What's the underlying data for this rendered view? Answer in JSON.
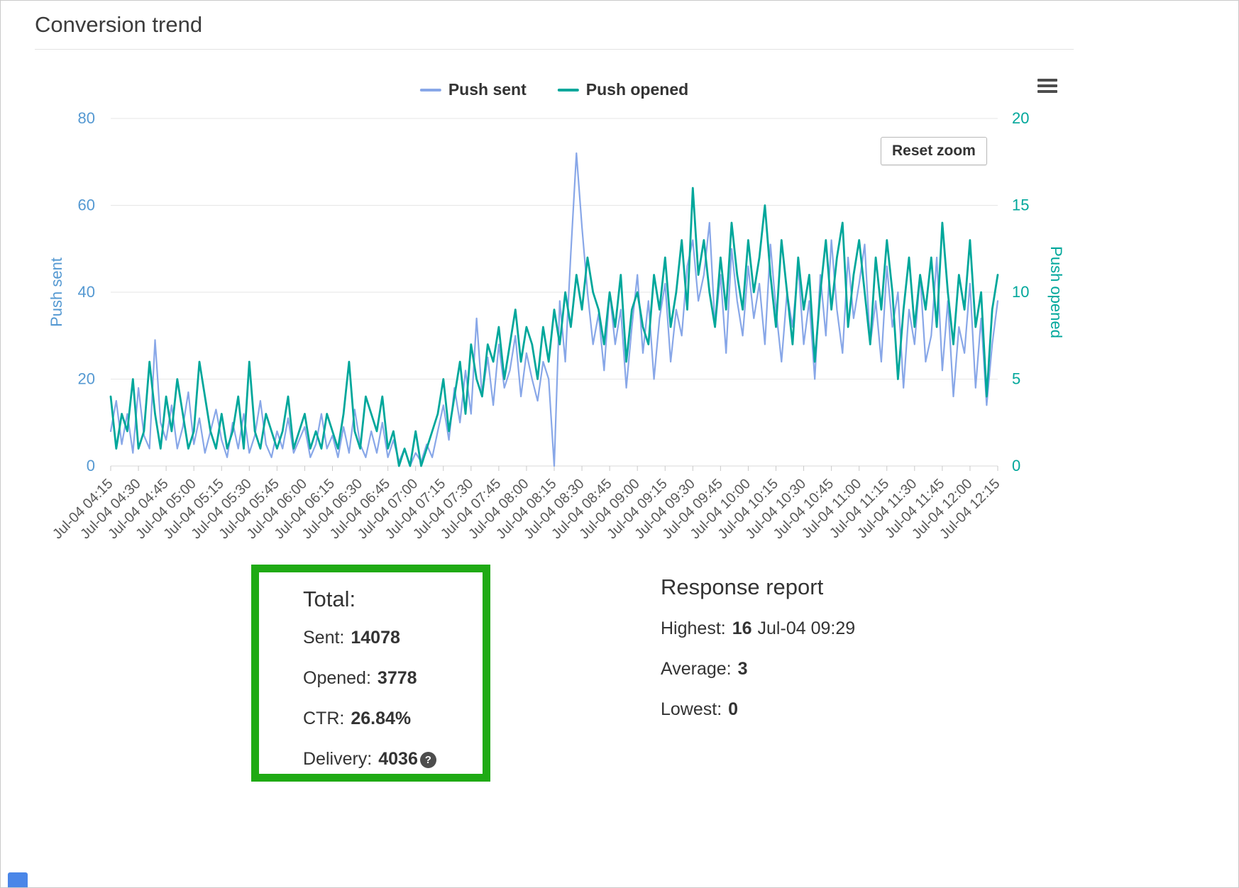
{
  "page": {
    "title": "Conversion trend"
  },
  "chart": {
    "reset_zoom_label": "Reset zoom"
  },
  "chart_data": {
    "type": "line",
    "title": "Conversion trend",
    "grid": true,
    "legend_position": "top",
    "x_tick_labels": [
      "Jul-04 04:15",
      "Jul-04 04:30",
      "Jul-04 04:45",
      "Jul-04 05:00",
      "Jul-04 05:15",
      "Jul-04 05:30",
      "Jul-04 05:45",
      "Jul-04 06:00",
      "Jul-04 06:15",
      "Jul-04 06:30",
      "Jul-04 06:45",
      "Jul-04 07:00",
      "Jul-04 07:15",
      "Jul-04 07:30",
      "Jul-04 07:45",
      "Jul-04 08:00",
      "Jul-04 08:15",
      "Jul-04 08:30",
      "Jul-04 08:45",
      "Jul-04 09:00",
      "Jul-04 09:15",
      "Jul-04 09:30",
      "Jul-04 09:45",
      "Jul-04 10:00",
      "Jul-04 10:15",
      "Jul-04 10:30",
      "Jul-04 10:45",
      "Jul-04 11:00",
      "Jul-04 11:15",
      "Jul-04 11:30",
      "Jul-04 11:45",
      "Jul-04 12:00",
      "Jul-04 12:15"
    ],
    "axes": {
      "left": {
        "title": "Push sent",
        "range": [
          0,
          80
        ],
        "ticks": [
          0,
          20,
          40,
          60,
          80
        ],
        "color": "#5599d2"
      },
      "right": {
        "title": "Push opened",
        "range": [
          0,
          20
        ],
        "ticks": [
          0,
          5,
          10,
          15,
          20
        ],
        "color": "#00a79b"
      }
    },
    "series": [
      {
        "name": "Push sent",
        "axis": "left",
        "color": "#88a7e8",
        "values": [
          8,
          15,
          5,
          12,
          3,
          18,
          7,
          4,
          29,
          10,
          6,
          14,
          4,
          9,
          17,
          5,
          11,
          3,
          8,
          13,
          6,
          2,
          10,
          4,
          12,
          3,
          7,
          15,
          5,
          2,
          8,
          4,
          11,
          3,
          6,
          9,
          2,
          5,
          12,
          4,
          7,
          2,
          9,
          3,
          13,
          5,
          2,
          8,
          3,
          10,
          2,
          6,
          1,
          4,
          0,
          3,
          1,
          5,
          2,
          8,
          14,
          6,
          18,
          10,
          22,
          12,
          34,
          16,
          25,
          14,
          28,
          18,
          22,
          30,
          16,
          26,
          20,
          15,
          24,
          20,
          0,
          38,
          24,
          49,
          72,
          55,
          40,
          28,
          35,
          22,
          40,
          28,
          36,
          18,
          32,
          44,
          26,
          38,
          20,
          34,
          42,
          24,
          36,
          30,
          46,
          52,
          38,
          44,
          56,
          32,
          44,
          26,
          50,
          38,
          30,
          46,
          34,
          42,
          28,
          51,
          36,
          24,
          40,
          32,
          46,
          28,
          38,
          20,
          44,
          30,
          52,
          36,
          26,
          48,
          34,
          42,
          51,
          28,
          38,
          24,
          46,
          32,
          40,
          18,
          36,
          28,
          44,
          24,
          30,
          48,
          22,
          38,
          16,
          32,
          26,
          42,
          18,
          34,
          14,
          28,
          38
        ]
      },
      {
        "name": "Push opened",
        "axis": "right",
        "color": "#00a79b",
        "values": [
          4,
          1,
          3,
          2,
          5,
          1,
          2,
          6,
          3,
          1,
          4,
          2,
          5,
          3,
          1,
          2,
          6,
          4,
          2,
          1,
          3,
          1,
          2,
          4,
          1,
          6,
          2,
          1,
          3,
          2,
          1,
          2,
          4,
          1,
          2,
          3,
          1,
          2,
          1,
          3,
          2,
          1,
          3,
          6,
          2,
          1,
          4,
          3,
          2,
          4,
          1,
          2,
          0,
          1,
          0,
          2,
          0,
          1,
          2,
          3,
          5,
          2,
          4,
          6,
          3,
          7,
          5,
          4,
          7,
          6,
          8,
          5,
          7,
          9,
          6,
          8,
          7,
          5,
          8,
          6,
          9,
          7,
          10,
          8,
          11,
          9,
          12,
          10,
          9,
          7,
          10,
          8,
          11,
          6,
          9,
          10,
          8,
          7,
          11,
          9,
          12,
          8,
          10,
          13,
          9,
          16,
          11,
          13,
          10,
          8,
          12,
          9,
          14,
          11,
          9,
          13,
          10,
          12,
          15,
          11,
          8,
          13,
          10,
          7,
          12,
          9,
          11,
          6,
          10,
          13,
          9,
          12,
          14,
          8,
          11,
          13,
          10,
          7,
          12,
          9,
          13,
          10,
          5,
          9,
          12,
          8,
          11,
          9,
          12,
          8,
          14,
          10,
          7,
          11,
          9,
          13,
          8,
          10,
          4,
          9,
          11
        ]
      }
    ]
  },
  "totals": {
    "heading": "Total:",
    "highlight_color": "#1faa14",
    "rows": [
      {
        "label": "Sent:",
        "value": "14078"
      },
      {
        "label": "Opened:",
        "value": "3778"
      },
      {
        "label": "CTR:",
        "value": "26.84%"
      },
      {
        "label": "Delivery:",
        "value": "4036"
      }
    ],
    "question_icon": "?"
  },
  "response_report": {
    "heading": "Response report",
    "rows": [
      {
        "label": "Highest:",
        "value": "16",
        "suffix": "Jul-04 09:29"
      },
      {
        "label": "Average:",
        "value": "3",
        "suffix": ""
      },
      {
        "label": "Lowest:",
        "value": "0",
        "suffix": ""
      }
    ]
  }
}
